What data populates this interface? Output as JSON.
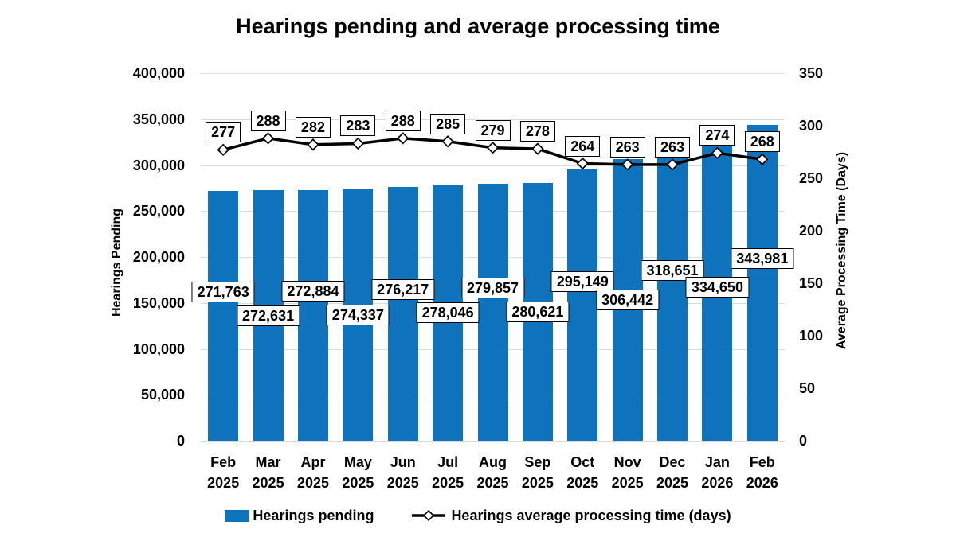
{
  "title": "Hearings pending and average processing time",
  "axes": {
    "left": {
      "title": "Hearings Pending",
      "tick_labels": [
        "0",
        "50,000",
        "100,000",
        "150,000",
        "200,000",
        "250,000",
        "300,000",
        "350,000",
        "400,000"
      ]
    },
    "right": {
      "title": "Average Processing Time (Days)",
      "tick_labels": [
        "0",
        "50",
        "100",
        "150",
        "200",
        "250",
        "300",
        "350"
      ]
    }
  },
  "legend": {
    "bar_label": "Hearings pending",
    "line_label": "Hearings average processing time (days)"
  },
  "colors": {
    "bar": "#0F72BC",
    "line": "#000000",
    "marker_fill": "#FFFFFF",
    "grid": "#DCDCDC",
    "background": "#FFFFFF",
    "label_box_border": "#000000",
    "label_box_fill": "#FFFFFF"
  },
  "chart_data": {
    "type": "bar+line combo",
    "categories": [
      "Feb 2025",
      "Mar 2025",
      "Apr 2025",
      "May 2025",
      "Jun 2025",
      "Jul 2025",
      "Aug 2025",
      "Sep 2025",
      "Oct 2025",
      "Nov 2025",
      "Dec 2025",
      "Jan 2026",
      "Feb 2026"
    ],
    "series": [
      {
        "name": "Hearings pending",
        "type": "bar",
        "axis": "left",
        "values": [
          271763,
          272631,
          272884,
          274337,
          276217,
          278046,
          279857,
          280621,
          295149,
          306442,
          318651,
          334650,
          343981
        ],
        "data_labels": [
          "271,763",
          "272,631",
          "272,884",
          "274,337",
          "276,217",
          "278,046",
          "279,857",
          "280,621",
          "295,149",
          "306,442",
          "318,651",
          "334,650",
          "343,981"
        ]
      },
      {
        "name": "Hearings average processing time (days)",
        "type": "line",
        "axis": "right",
        "values": [
          277,
          288,
          282,
          283,
          288,
          285,
          279,
          278,
          264,
          263,
          263,
          274,
          268
        ],
        "data_labels": [
          "277",
          "288",
          "282",
          "283",
          "288",
          "285",
          "279",
          "278",
          "264",
          "263",
          "263",
          "274",
          "268"
        ]
      }
    ],
    "left_ylim": [
      0,
      400000
    ],
    "right_ylim": [
      0,
      350
    ],
    "left_step": 50000,
    "right_step": 50,
    "grid": "horizontal gridlines on",
    "legend_position": "bottom"
  }
}
